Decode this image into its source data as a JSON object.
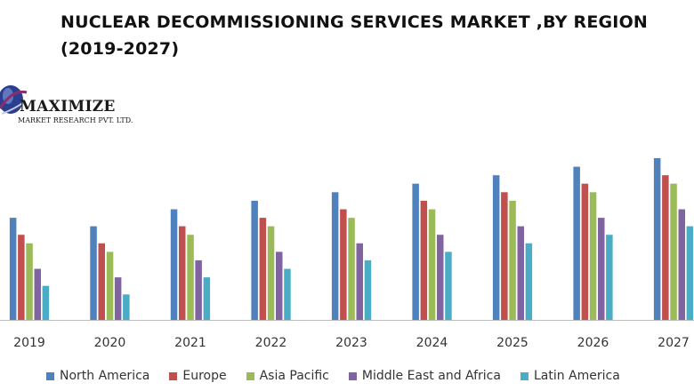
{
  "title": {
    "line1": "NUCLEAR DECOMMISSIONING SERVICES MARKET ,BY REGION",
    "line2": "(2019-2027)"
  },
  "logo": {
    "name": "MAXIMIZE",
    "subtitle": "MARKET RESEARCH PVT. LTD.",
    "icon": "globe-icon"
  },
  "colors": {
    "north_america": "#4f81bd",
    "europe": "#c0504d",
    "asia_pacific": "#9bbb59",
    "middle_east_africa": "#8064a2",
    "latin_america": "#4bacc6",
    "axis": "#bfbfbf"
  },
  "chart_data": {
    "type": "bar",
    "title": "NUCLEAR DECOMMISSIONING SERVICES MARKET ,BY REGION (2019-2027)",
    "xlabel": "",
    "ylabel": "",
    "grid": false,
    "legend_position": "bottom",
    "ylim": [
      0,
      19
    ],
    "categories": [
      "2019",
      "2020",
      "2021",
      "2022",
      "2023",
      "2024",
      "2025",
      "2026",
      "2027"
    ],
    "series": [
      {
        "name": "North America",
        "color": "#4f81bd",
        "values": [
          12,
          11,
          13,
          14,
          15,
          16,
          17,
          18,
          19
        ]
      },
      {
        "name": "Europe",
        "color": "#c0504d",
        "values": [
          10,
          9,
          11,
          12,
          13,
          14,
          15,
          16,
          17
        ]
      },
      {
        "name": "Asia Pacific",
        "color": "#9bbb59",
        "values": [
          9,
          8,
          10,
          11,
          12,
          13,
          14,
          15,
          16
        ]
      },
      {
        "name": "Middle East and Africa",
        "color": "#8064a2",
        "values": [
          6,
          5,
          7,
          8,
          9,
          10,
          11,
          12,
          13
        ]
      },
      {
        "name": "Latin America",
        "color": "#4bacc6",
        "values": [
          4,
          3,
          5,
          6,
          7,
          8,
          9,
          10,
          11
        ]
      }
    ]
  }
}
